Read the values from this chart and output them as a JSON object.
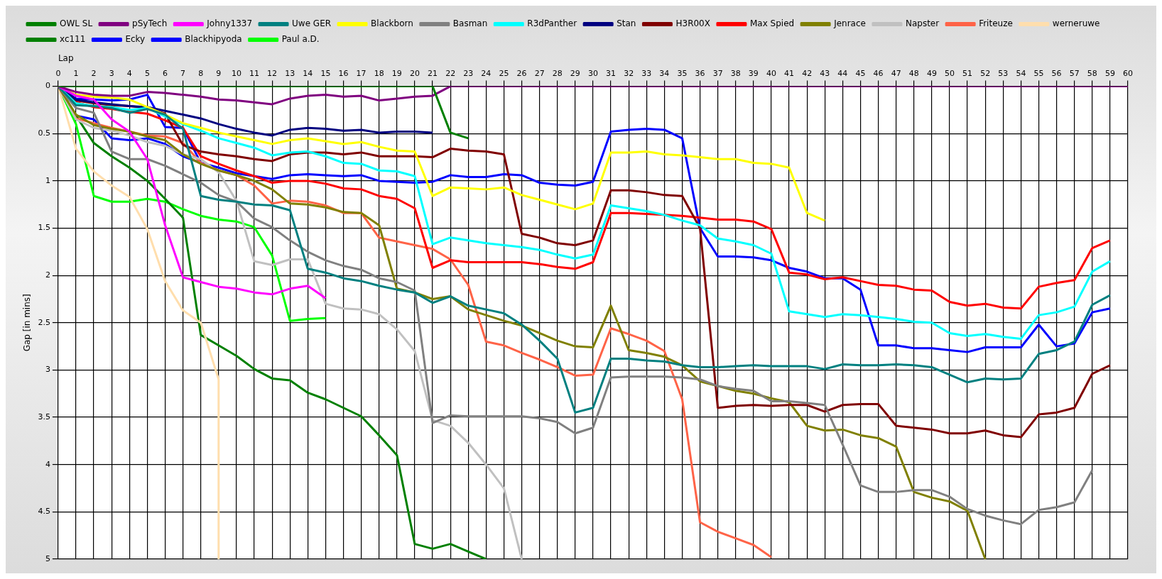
{
  "chart_data": {
    "type": "line",
    "xlabel": "Lap",
    "ylabel": "Gap [in mins]",
    "x": [
      0,
      1,
      2,
      3,
      4,
      5,
      6,
      7,
      8,
      9,
      10,
      11,
      12,
      13,
      14,
      15,
      16,
      17,
      18,
      19,
      20,
      21,
      22,
      23,
      24,
      25,
      26,
      27,
      28,
      29,
      30,
      31,
      32,
      33,
      34,
      35,
      36,
      37,
      38,
      39,
      40,
      41,
      42,
      43,
      44,
      45,
      46,
      47,
      48,
      49,
      50,
      51,
      52,
      53,
      54,
      55,
      56,
      57,
      58,
      59,
      60
    ],
    "xlim": [
      0,
      60
    ],
    "xticks": [
      0,
      1,
      2,
      3,
      4,
      5,
      6,
      7,
      8,
      9,
      10,
      11,
      12,
      13,
      14,
      15,
      16,
      17,
      18,
      19,
      20,
      21,
      22,
      23,
      24,
      25,
      26,
      27,
      28,
      29,
      30,
      31,
      32,
      33,
      34,
      35,
      36,
      37,
      38,
      39,
      40,
      41,
      42,
      43,
      44,
      45,
      46,
      47,
      48,
      49,
      50,
      51,
      52,
      53,
      54,
      55,
      56,
      57,
      58,
      59,
      60
    ],
    "ylim": [
      5,
      0
    ],
    "yticks": [
      0,
      0.5,
      1,
      1.5,
      2,
      2.5,
      3,
      3.5,
      4,
      4.5,
      5
    ],
    "grid": true,
    "legend": "top",
    "marker": "none",
    "line_style": "solid",
    "series": [
      {
        "name": "OWL SL",
        "color": "#008000",
        "values": [
          0,
          0,
          0,
          0,
          0,
          0,
          0,
          0,
          0,
          0,
          0,
          0,
          0,
          0,
          0,
          0,
          0,
          0,
          0,
          0,
          0,
          0,
          0.49,
          0.55,
          null,
          null,
          null,
          null,
          null,
          null,
          null,
          null,
          null,
          null,
          null,
          null,
          null,
          null,
          null,
          null,
          null,
          null,
          null,
          null,
          null,
          null,
          null,
          null,
          null,
          null,
          null,
          null,
          null,
          null,
          null,
          null,
          null,
          null,
          null,
          null,
          null
        ]
      },
      {
        "name": "pSyTech",
        "color": "#800080",
        "values": [
          0,
          0.06,
          0.09,
          0.1,
          0.1,
          0.06,
          0.07,
          0.09,
          0.11,
          0.14,
          0.15,
          0.17,
          0.19,
          0.13,
          0.1,
          0.09,
          0.11,
          0.1,
          0.15,
          0.13,
          0.11,
          0.1,
          0,
          0,
          0,
          0,
          0,
          0,
          0,
          0,
          0,
          0,
          0,
          0,
          0,
          0,
          0,
          0,
          0,
          0,
          0,
          0,
          0,
          0,
          0,
          0,
          0,
          0,
          0,
          0,
          0,
          0,
          0,
          0,
          0,
          0,
          0,
          0,
          0,
          0,
          0
        ]
      },
      {
        "name": "Johny1337",
        "color": "#ff00ff",
        "values": [
          0,
          0.1,
          0.14,
          0.35,
          0.48,
          0.77,
          1.47,
          2.02,
          2.07,
          2.12,
          2.14,
          2.18,
          2.2,
          2.14,
          2.11,
          2.24,
          null,
          null,
          null,
          null,
          null,
          null,
          null,
          null,
          null,
          null,
          null,
          null,
          null,
          null,
          null,
          null,
          null,
          null,
          null,
          null,
          null,
          null,
          null,
          null,
          null,
          null,
          null,
          null,
          null,
          null,
          null,
          null,
          null,
          null,
          null,
          null,
          null,
          null,
          null,
          null,
          null,
          null,
          null,
          null,
          null
        ]
      },
      {
        "name": "Uwe GER",
        "color": "#008080",
        "values": [
          0,
          0.2,
          0.21,
          0.23,
          0.28,
          0.24,
          0.3,
          0.45,
          1.16,
          1.2,
          1.22,
          1.25,
          1.26,
          1.31,
          1.93,
          1.97,
          2.03,
          2.06,
          2.11,
          2.15,
          2.18,
          2.29,
          2.22,
          2.32,
          2.36,
          2.4,
          2.52,
          2.69,
          2.88,
          3.45,
          3.4,
          2.88,
          2.88,
          2.9,
          2.91,
          2.95,
          2.97,
          2.97,
          2.96,
          2.95,
          2.96,
          2.96,
          2.96,
          2.99,
          2.94,
          2.95,
          2.95,
          2.94,
          2.95,
          2.97,
          3.05,
          3.13,
          3.09,
          3.1,
          3.09,
          2.83,
          2.79,
          2.7,
          2.31,
          2.21,
          null
        ]
      },
      {
        "name": "Blackborn",
        "color": "#ffff00",
        "values": [
          0,
          0.09,
          0.11,
          0.12,
          0.14,
          0.22,
          0.3,
          0.39,
          0.44,
          0.49,
          0.53,
          0.57,
          0.61,
          0.57,
          0.55,
          0.58,
          0.61,
          0.59,
          0.64,
          0.68,
          0.69,
          1.16,
          1.07,
          1.08,
          1.09,
          1.07,
          1.15,
          1.2,
          1.25,
          1.3,
          1.24,
          0.7,
          0.7,
          0.69,
          0.72,
          0.73,
          0.75,
          0.77,
          0.77,
          0.81,
          0.82,
          0.86,
          1.34,
          1.42,
          null,
          null,
          null,
          null,
          null,
          null,
          null,
          null,
          null,
          null,
          null,
          null,
          null,
          null,
          null,
          null,
          null
        ]
      },
      {
        "name": "Basman",
        "color": "#808080",
        "values": [
          0,
          0.23,
          0.28,
          0.69,
          0.77,
          0.77,
          0.84,
          0.93,
          1.02,
          1.15,
          1.22,
          1.4,
          1.49,
          1.63,
          1.75,
          1.84,
          1.9,
          1.94,
          2.03,
          2.07,
          2.16,
          3.56,
          3.48,
          3.49,
          3.49,
          3.49,
          3.49,
          3.51,
          3.55,
          3.67,
          3.61,
          3.08,
          3.07,
          3.07,
          3.07,
          3.08,
          3.1,
          3.17,
          3.2,
          3.22,
          3.33,
          3.33,
          3.35,
          3.37,
          3.79,
          4.22,
          4.29,
          4.29,
          4.27,
          4.27,
          4.34,
          4.47,
          4.54,
          4.59,
          4.63,
          4.48,
          4.45,
          4.4,
          4.06,
          null,
          null
        ]
      },
      {
        "name": "R3dPanther",
        "color": "#00ffff",
        "values": [
          0,
          0.18,
          0.21,
          0.22,
          0.25,
          0.23,
          0.32,
          0.4,
          0.47,
          0.55,
          0.6,
          0.65,
          0.73,
          0.7,
          0.69,
          0.74,
          0.81,
          0.82,
          0.89,
          0.9,
          0.95,
          1.67,
          1.6,
          1.63,
          1.66,
          1.68,
          1.7,
          1.73,
          1.78,
          1.82,
          1.78,
          1.26,
          1.29,
          1.32,
          1.36,
          1.42,
          1.47,
          1.61,
          1.64,
          1.68,
          1.77,
          2.38,
          2.41,
          2.44,
          2.41,
          2.42,
          2.44,
          2.46,
          2.49,
          2.5,
          2.61,
          2.64,
          2.62,
          2.65,
          2.67,
          2.42,
          2.39,
          2.33,
          1.96,
          1.85,
          null
        ]
      },
      {
        "name": "Stan",
        "color": "#000080",
        "values": [
          0,
          0.14,
          0.17,
          0.19,
          0.21,
          0.22,
          0.26,
          0.3,
          0.34,
          0.4,
          0.45,
          0.49,
          0.52,
          0.46,
          0.44,
          0.45,
          0.47,
          0.46,
          0.49,
          0.48,
          0.48,
          0.49,
          null,
          null,
          null,
          null,
          null,
          null,
          null,
          null,
          null,
          null,
          null,
          null,
          null,
          null,
          null,
          null,
          null,
          null,
          null,
          null,
          null,
          null,
          null,
          null,
          null,
          null,
          null,
          null,
          null,
          null,
          null,
          null,
          null,
          null,
          null,
          null,
          null,
          null,
          null
        ]
      },
      {
        "name": "H3R00X",
        "color": "#800000",
        "values": [
          0,
          0.15,
          0.18,
          0.2,
          0.21,
          0.23,
          0.29,
          0.62,
          0.69,
          0.72,
          0.74,
          0.77,
          0.79,
          0.72,
          0.7,
          0.7,
          0.72,
          0.7,
          0.74,
          0.74,
          0.74,
          0.75,
          0.66,
          0.68,
          0.69,
          0.72,
          1.56,
          1.6,
          1.66,
          1.68,
          1.63,
          1.1,
          1.1,
          1.12,
          1.15,
          1.16,
          1.5,
          3.4,
          3.38,
          3.37,
          3.38,
          3.37,
          3.37,
          3.44,
          3.37,
          3.36,
          3.36,
          3.59,
          3.61,
          3.63,
          3.67,
          3.67,
          3.64,
          3.69,
          3.71,
          3.47,
          3.45,
          3.4,
          3.04,
          2.95,
          null
        ]
      },
      {
        "name": "Max Spied",
        "color": "#ff0000",
        "values": [
          0,
          0.17,
          0.22,
          0.24,
          0.27,
          0.29,
          0.36,
          0.44,
          0.74,
          0.82,
          0.89,
          0.95,
          1.02,
          1,
          1,
          1.03,
          1.08,
          1.09,
          1.16,
          1.19,
          1.29,
          1.92,
          1.84,
          1.86,
          1.86,
          1.86,
          1.86,
          1.88,
          1.91,
          1.93,
          1.86,
          1.34,
          1.34,
          1.35,
          1.36,
          1.37,
          1.39,
          1.41,
          1.41,
          1.43,
          1.51,
          1.97,
          1.99,
          2.04,
          2.02,
          2.06,
          2.1,
          2.11,
          2.15,
          2.16,
          2.28,
          2.32,
          2.3,
          2.34,
          2.35,
          2.12,
          2.08,
          2.05,
          1.71,
          1.63,
          null
        ]
      },
      {
        "name": "Jenrace",
        "color": "#808000",
        "values": [
          0,
          0.3,
          0.41,
          0.45,
          0.48,
          0.53,
          0.57,
          0.72,
          0.82,
          0.89,
          0.94,
          1,
          1.09,
          1.24,
          1.25,
          1.28,
          1.33,
          1.34,
          1.47,
          2.14,
          2.18,
          2.25,
          2.22,
          2.36,
          2.42,
          2.48,
          2.53,
          2.61,
          2.69,
          2.75,
          2.76,
          2.32,
          2.79,
          2.82,
          2.86,
          2.95,
          3.12,
          3.17,
          3.22,
          3.25,
          3.3,
          3.34,
          3.59,
          3.64,
          3.63,
          3.69,
          3.72,
          3.81,
          4.29,
          4.35,
          4.39,
          4.49,
          5,
          null,
          null,
          null,
          null,
          null,
          null,
          null,
          null
        ]
      },
      {
        "name": "Napster",
        "color": "#c0c0c0",
        "values": [
          0,
          0.35,
          0.44,
          0.47,
          0.52,
          0.59,
          0.63,
          0.72,
          0.77,
          0.91,
          1.21,
          1.85,
          1.89,
          1.83,
          1.83,
          2.3,
          2.35,
          2.36,
          2.41,
          2.57,
          2.8,
          3.53,
          3.59,
          3.77,
          4,
          4.25,
          5,
          null,
          null,
          null,
          null,
          null,
          null,
          null,
          null,
          null,
          null,
          null,
          null,
          null,
          null,
          null,
          null,
          null,
          null,
          null,
          null,
          null,
          null,
          null,
          null,
          null,
          null,
          null,
          null,
          null,
          null,
          null,
          null,
          null,
          null
        ]
      },
      {
        "name": "Friteuze",
        "color": "#ff6347",
        "values": [
          0,
          0.34,
          0.39,
          0.44,
          0.48,
          0.52,
          0.53,
          0.6,
          0.81,
          0.89,
          0.94,
          1.05,
          1.24,
          1.21,
          1.22,
          1.26,
          1.34,
          1.34,
          1.6,
          1.64,
          1.68,
          1.72,
          1.83,
          2.1,
          2.7,
          2.74,
          2.82,
          2.89,
          2.97,
          3.06,
          3.05,
          2.56,
          2.62,
          2.69,
          2.8,
          3.31,
          4.61,
          4.71,
          4.78,
          4.85,
          4.98,
          null,
          null,
          null,
          null,
          null,
          null,
          null,
          null,
          null,
          null,
          null,
          null,
          null,
          null,
          null,
          null,
          null,
          null,
          null,
          null
        ]
      },
      {
        "name": "werneruwe",
        "color": "#ffdead",
        "x": [
          0,
          1,
          2,
          3,
          4,
          5,
          6,
          7,
          8,
          9,
          9
        ],
        "values": [
          0,
          0.66,
          0.9,
          1.05,
          1.17,
          1.51,
          2.06,
          2.37,
          2.5,
          3.1,
          5
        ]
      },
      {
        "name": "xc111",
        "color": "#008000",
        "values": [
          0,
          0.31,
          0.6,
          0.74,
          0.86,
          1,
          1.19,
          1.39,
          2.63,
          2.74,
          2.85,
          2.99,
          3.09,
          3.11,
          3.24,
          3.31,
          3.4,
          3.49,
          3.69,
          3.9,
          4.84,
          4.89,
          4.84,
          4.92,
          5,
          null,
          null,
          null,
          null,
          null,
          null,
          null,
          null,
          null,
          null,
          null,
          null,
          null,
          null,
          null,
          null,
          null,
          null,
          null,
          null,
          null,
          null,
          null,
          null,
          null,
          null,
          null,
          null,
          null,
          null,
          null,
          null,
          null,
          null,
          null,
          null
        ]
      },
      {
        "name": "Ecky",
        "color": "#0000ff",
        "values": [
          0,
          0.13,
          0.14,
          0.15,
          0.14,
          0.09,
          0.43,
          0.44,
          0.81,
          null,
          null,
          null,
          null,
          null,
          null,
          null,
          null,
          null,
          null,
          null,
          null,
          null,
          null,
          null,
          null,
          null,
          null,
          null,
          null,
          null,
          null,
          null,
          null,
          null,
          null,
          null,
          null,
          null,
          null,
          null,
          null,
          null,
          null,
          null,
          null,
          null,
          null,
          null,
          null,
          null,
          null,
          null,
          null,
          null,
          null,
          null,
          null,
          null,
          null,
          null,
          null
        ]
      },
      {
        "name": "Blackhipyoda",
        "color": "#0000ff",
        "values": [
          0,
          0.31,
          0.35,
          0.55,
          0.57,
          0.55,
          0.61,
          0.74,
          0.81,
          0.86,
          0.92,
          0.95,
          0.98,
          0.94,
          0.93,
          0.94,
          0.95,
          0.94,
          1,
          1.01,
          1.02,
          1.01,
          0.94,
          0.96,
          0.96,
          0.93,
          0.94,
          1.02,
          1.04,
          1.05,
          1.01,
          0.48,
          0.46,
          0.45,
          0.46,
          0.55,
          1.5,
          1.8,
          1.8,
          1.81,
          1.84,
          1.92,
          1.96,
          2.03,
          2.03,
          2.15,
          2.74,
          2.74,
          2.77,
          2.77,
          2.79,
          2.81,
          2.76,
          2.76,
          2.76,
          2.52,
          2.75,
          2.72,
          2.39,
          2.35,
          null
        ]
      },
      {
        "name": "Paul a.D.",
        "color": "#00ff00",
        "values": [
          0,
          0.4,
          1.16,
          1.22,
          1.22,
          1.19,
          1.22,
          1.3,
          1.37,
          1.41,
          1.43,
          1.49,
          1.79,
          2.48,
          2.46,
          2.45,
          null,
          null,
          null,
          null,
          null,
          null,
          null,
          null,
          null,
          null,
          null,
          null,
          null,
          null,
          null,
          null,
          null,
          null,
          null,
          null,
          null,
          null,
          null,
          null,
          null,
          null,
          null,
          null,
          null,
          null,
          null,
          null,
          null,
          null,
          null,
          null,
          null,
          null,
          null,
          null,
          null,
          null,
          null,
          null,
          null
        ]
      }
    ]
  }
}
